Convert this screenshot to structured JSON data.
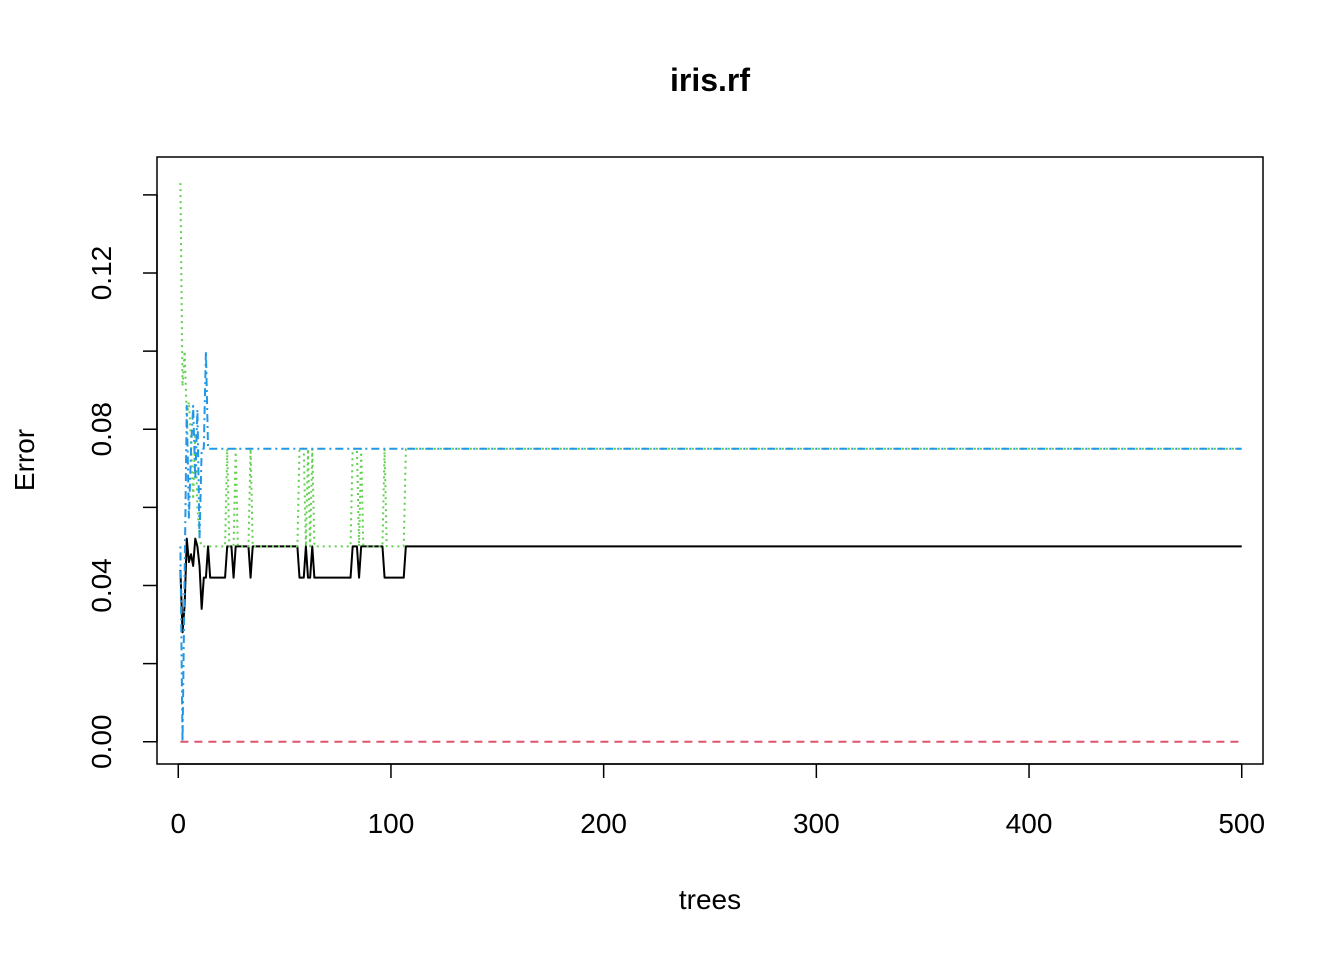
{
  "chart_data": {
    "type": "line",
    "title": "iris.rf",
    "xlabel": "trees",
    "ylabel": "Error",
    "xlim": [
      -10,
      510
    ],
    "ylim": [
      -0.0057,
      0.1497
    ],
    "x_ticks": [
      0,
      100,
      200,
      300,
      400,
      500
    ],
    "y_ticks": [
      0,
      0.02,
      0.04,
      0.06,
      0.08,
      0.1,
      0.12,
      0.14
    ],
    "y_tick_labels": [
      "0.00",
      "",
      "0.04",
      "",
      "0.08",
      "",
      "0.12",
      ""
    ],
    "grid": false,
    "series": [
      {
        "color": "#000000",
        "dash": "solid",
        "points": [
          [
            1,
            0.044
          ],
          [
            2,
            0.028
          ],
          [
            3,
            0.035
          ],
          [
            4,
            0.052
          ],
          [
            5,
            0.046
          ],
          [
            6,
            0.048
          ],
          [
            7,
            0.045
          ],
          [
            8,
            0.052
          ],
          [
            9,
            0.05
          ],
          [
            10,
            0.045
          ],
          [
            11,
            0.034
          ],
          [
            12,
            0.042
          ],
          [
            13,
            0.042
          ],
          [
            14,
            0.05
          ],
          [
            15,
            0.042
          ],
          [
            16,
            0.042
          ],
          [
            22,
            0.042
          ],
          [
            23,
            0.05
          ],
          [
            25,
            0.05
          ],
          [
            26,
            0.042
          ],
          [
            27,
            0.05
          ],
          [
            33,
            0.05
          ],
          [
            34,
            0.042
          ],
          [
            35,
            0.05
          ],
          [
            56,
            0.05
          ],
          [
            57,
            0.042
          ],
          [
            59,
            0.042
          ],
          [
            60,
            0.05
          ],
          [
            61,
            0.042
          ],
          [
            62,
            0.042
          ],
          [
            63,
            0.05
          ],
          [
            64,
            0.042
          ],
          [
            81,
            0.042
          ],
          [
            82,
            0.05
          ],
          [
            84,
            0.05
          ],
          [
            85,
            0.042
          ],
          [
            86,
            0.05
          ],
          [
            96,
            0.05
          ],
          [
            97,
            0.042
          ],
          [
            106,
            0.042
          ],
          [
            107,
            0.05
          ],
          [
            500,
            0.05
          ]
        ]
      },
      {
        "color": "#df536b",
        "dash": "dashed",
        "points": [
          [
            1,
            0
          ],
          [
            500,
            0
          ]
        ]
      },
      {
        "color": "#61d04f",
        "dash": "dotted",
        "points": [
          [
            1,
            0.143
          ],
          [
            2,
            0.091
          ],
          [
            3,
            0.1
          ],
          [
            4,
            0.083
          ],
          [
            5,
            0.087
          ],
          [
            6,
            0.077
          ],
          [
            7,
            0.062
          ],
          [
            8,
            0.079
          ],
          [
            9,
            0.06
          ],
          [
            10,
            0.052
          ],
          [
            11,
            0.05
          ],
          [
            22,
            0.05
          ],
          [
            23,
            0.075
          ],
          [
            24,
            0.05
          ],
          [
            26,
            0.05
          ],
          [
            27,
            0.075
          ],
          [
            28,
            0.05
          ],
          [
            33,
            0.05
          ],
          [
            34,
            0.075
          ],
          [
            35,
            0.05
          ],
          [
            56,
            0.05
          ],
          [
            57,
            0.075
          ],
          [
            59,
            0.075
          ],
          [
            60,
            0.05
          ],
          [
            61,
            0.075
          ],
          [
            62,
            0.05
          ],
          [
            63,
            0.075
          ],
          [
            64,
            0.05
          ],
          [
            81,
            0.05
          ],
          [
            82,
            0.075
          ],
          [
            84,
            0.075
          ],
          [
            85,
            0.05
          ],
          [
            86,
            0.075
          ],
          [
            87,
            0.05
          ],
          [
            96,
            0.05
          ],
          [
            97,
            0.075
          ],
          [
            98,
            0.05
          ],
          [
            106,
            0.05
          ],
          [
            107,
            0.075
          ],
          [
            500,
            0.075
          ]
        ]
      },
      {
        "color": "#2297e6",
        "dash": "dotdash",
        "points": [
          [
            1,
            0.05
          ],
          [
            2,
            0
          ],
          [
            3,
            0.043
          ],
          [
            4,
            0.086
          ],
          [
            5,
            0.057
          ],
          [
            6,
            0.075
          ],
          [
            7,
            0.086
          ],
          [
            8,
            0.067
          ],
          [
            9,
            0.085
          ],
          [
            10,
            0.052
          ],
          [
            11,
            0.075
          ],
          [
            12,
            0.075
          ],
          [
            13,
            0.1
          ],
          [
            14,
            0.075
          ],
          [
            500,
            0.075
          ]
        ]
      }
    ]
  }
}
